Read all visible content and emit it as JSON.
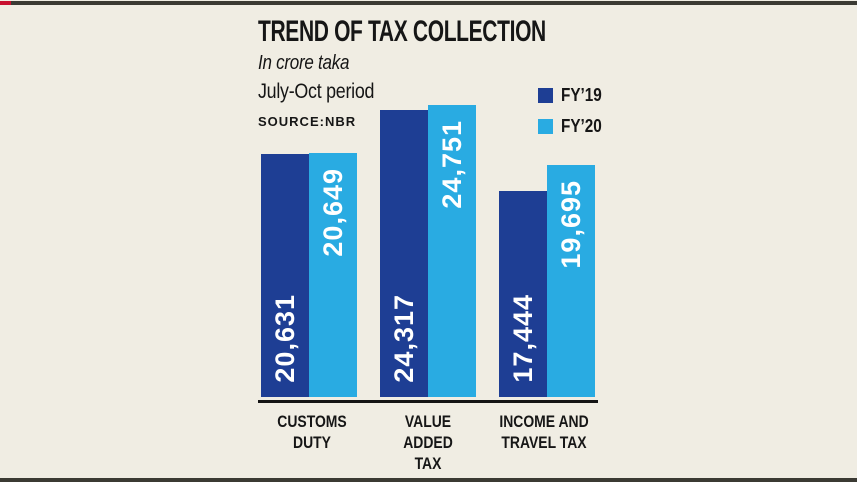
{
  "header": {
    "title": "TREND OF TAX COLLECTION",
    "unit_note": "In crore taka",
    "period": "July-Oct period",
    "source": "SOURCE:NBR"
  },
  "legend": {
    "position": "top-right",
    "items": [
      {
        "label": "FY’19",
        "color": "#1e3e94"
      },
      {
        "label": "FY’20",
        "color": "#29abe2"
      }
    ]
  },
  "chart_data": {
    "type": "bar",
    "title": "TREND OF TAX COLLECTION",
    "subtitle": "In crore taka, July-Oct period",
    "source": "SOURCE:NBR",
    "grid": false,
    "legend_position": "top-right",
    "ylim": [
      0,
      24751
    ],
    "value_label_color": "#ffffff",
    "axis_color": "#141414",
    "background_color": "#f0ede3",
    "categories": [
      {
        "label": "CUSTOMS DUTY",
        "line1": "CUSTOMS",
        "line2": "DUTY"
      },
      {
        "label": "VALUE ADDED TAX",
        "line1": "VALUE ADDED",
        "line2": "TAX"
      },
      {
        "label": "INCOME AND TRAVEL TAX",
        "line1": "INCOME AND",
        "line2": "TRAVEL TAX"
      }
    ],
    "series": [
      {
        "name": "FY’19",
        "color": "#1e3e94",
        "values": [
          20631,
          24317,
          17444
        ],
        "labels": [
          "20,631",
          "24,317",
          "17,444"
        ]
      },
      {
        "name": "FY’20",
        "color": "#29abe2",
        "values": [
          20649,
          24751,
          19695
        ],
        "labels": [
          "20,649",
          "24,751",
          "19,695"
        ]
      }
    ]
  },
  "decor": {
    "top_border_color": "#3b3a33",
    "red_accent_color": "#c8102e"
  }
}
